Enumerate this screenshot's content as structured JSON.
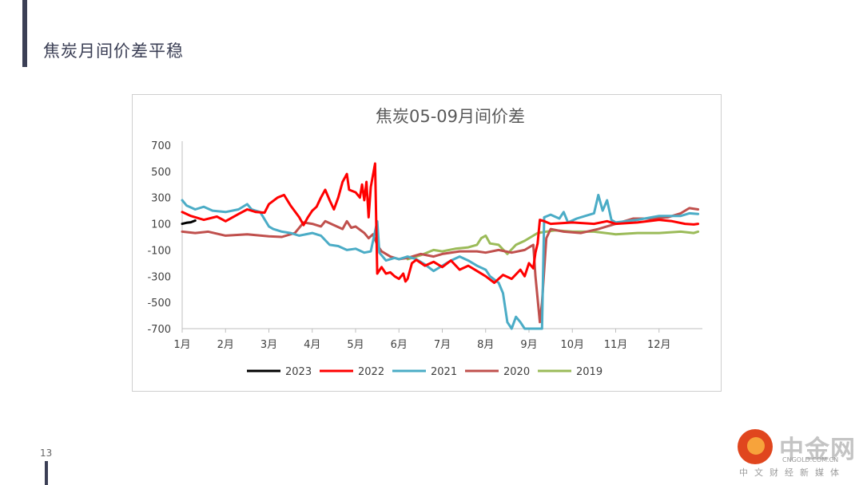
{
  "slide": {
    "title": "焦炭月间价差平稳",
    "page_number": "13"
  },
  "watermark": {
    "name": "中金网",
    "url": "CNGOLD.COM.CN",
    "tagline": "中文财经新媒体"
  },
  "chart_data": {
    "type": "line",
    "title": "焦炭05-09月间价差",
    "ylim": [
      -700,
      700
    ],
    "y_ticks": [
      700,
      500,
      300,
      100,
      -100,
      -300,
      -500,
      -700
    ],
    "x_range": [
      1,
      13
    ],
    "x_ticks": [
      {
        "label": "1月",
        "value": 1
      },
      {
        "label": "2月",
        "value": 2
      },
      {
        "label": "3月",
        "value": 3
      },
      {
        "label": "4月",
        "value": 4
      },
      {
        "label": "5月",
        "value": 5
      },
      {
        "label": "6月",
        "value": 6
      },
      {
        "label": "7月",
        "value": 7
      },
      {
        "label": "8月",
        "value": 8
      },
      {
        "label": "9月",
        "value": 9
      },
      {
        "label": "10月",
        "value": 10
      },
      {
        "label": "11月",
        "value": 11
      },
      {
        "label": "12月",
        "value": 12
      }
    ],
    "grid": false,
    "legend_position": "bottom",
    "series": [
      {
        "name": "2023",
        "color": "#000000",
        "points": [
          [
            1.0,
            100
          ],
          [
            1.1,
            108
          ],
          [
            1.2,
            112
          ],
          [
            1.3,
            125
          ]
        ]
      },
      {
        "name": "2022",
        "color": "#ff0000",
        "points": [
          [
            1.0,
            190
          ],
          [
            1.2,
            160
          ],
          [
            1.5,
            130
          ],
          [
            1.8,
            155
          ],
          [
            2.0,
            120
          ],
          [
            2.3,
            175
          ],
          [
            2.5,
            210
          ],
          [
            2.7,
            190
          ],
          [
            2.9,
            185
          ],
          [
            3.0,
            250
          ],
          [
            3.2,
            300
          ],
          [
            3.35,
            320
          ],
          [
            3.5,
            240
          ],
          [
            3.7,
            150
          ],
          [
            3.8,
            90
          ],
          [
            3.9,
            150
          ],
          [
            4.0,
            200
          ],
          [
            4.1,
            230
          ],
          [
            4.2,
            300
          ],
          [
            4.3,
            360
          ],
          [
            4.4,
            280
          ],
          [
            4.5,
            210
          ],
          [
            4.6,
            300
          ],
          [
            4.7,
            420
          ],
          [
            4.8,
            480
          ],
          [
            4.85,
            360
          ],
          [
            5.0,
            340
          ],
          [
            5.1,
            300
          ],
          [
            5.15,
            400
          ],
          [
            5.2,
            280
          ],
          [
            5.25,
            420
          ],
          [
            5.3,
            150
          ],
          [
            5.35,
            380
          ],
          [
            5.45,
            560
          ],
          [
            5.5,
            -280
          ],
          [
            5.6,
            -230
          ],
          [
            5.7,
            -280
          ],
          [
            5.8,
            -270
          ],
          [
            5.9,
            -300
          ],
          [
            6.0,
            -320
          ],
          [
            6.1,
            -280
          ],
          [
            6.15,
            -340
          ],
          [
            6.2,
            -320
          ],
          [
            6.3,
            -200
          ],
          [
            6.4,
            -175
          ],
          [
            6.6,
            -220
          ],
          [
            6.8,
            -190
          ],
          [
            7.0,
            -230
          ],
          [
            7.2,
            -180
          ],
          [
            7.4,
            -250
          ],
          [
            7.6,
            -220
          ],
          [
            7.8,
            -260
          ],
          [
            8.0,
            -300
          ],
          [
            8.2,
            -350
          ],
          [
            8.4,
            -290
          ],
          [
            8.6,
            -320
          ],
          [
            8.8,
            -250
          ],
          [
            8.9,
            -300
          ],
          [
            9.0,
            -200
          ],
          [
            9.1,
            -240
          ],
          [
            9.15,
            -120
          ],
          [
            9.2,
            -50
          ],
          [
            9.25,
            130
          ],
          [
            9.35,
            120
          ],
          [
            9.5,
            100
          ],
          [
            10.0,
            110
          ],
          [
            10.5,
            100
          ],
          [
            10.8,
            120
          ],
          [
            11.0,
            100
          ],
          [
            11.5,
            110
          ],
          [
            12.0,
            130
          ],
          [
            12.3,
            120
          ],
          [
            12.6,
            100
          ],
          [
            12.8,
            95
          ],
          [
            12.9,
            100
          ]
        ]
      },
      {
        "name": "2021",
        "color": "#4bacc6",
        "points": [
          [
            1.0,
            280
          ],
          [
            1.1,
            240
          ],
          [
            1.3,
            210
          ],
          [
            1.5,
            230
          ],
          [
            1.7,
            200
          ],
          [
            2.0,
            190
          ],
          [
            2.3,
            210
          ],
          [
            2.5,
            250
          ],
          [
            2.6,
            210
          ],
          [
            2.8,
            190
          ],
          [
            3.0,
            80
          ],
          [
            3.1,
            60
          ],
          [
            3.3,
            40
          ],
          [
            3.5,
            30
          ],
          [
            3.7,
            10
          ],
          [
            4.0,
            30
          ],
          [
            4.2,
            10
          ],
          [
            4.4,
            -60
          ],
          [
            4.6,
            -70
          ],
          [
            4.8,
            -100
          ],
          [
            5.0,
            -90
          ],
          [
            5.2,
            -120
          ],
          [
            5.35,
            -110
          ],
          [
            5.5,
            120
          ],
          [
            5.55,
            -120
          ],
          [
            5.7,
            -180
          ],
          [
            5.9,
            -160
          ],
          [
            6.0,
            -170
          ],
          [
            6.2,
            -150
          ],
          [
            6.4,
            -170
          ],
          [
            6.6,
            -210
          ],
          [
            6.8,
            -260
          ],
          [
            7.0,
            -220
          ],
          [
            7.2,
            -180
          ],
          [
            7.4,
            -150
          ],
          [
            7.6,
            -180
          ],
          [
            7.8,
            -220
          ],
          [
            8.0,
            -250
          ],
          [
            8.1,
            -300
          ],
          [
            8.3,
            -350
          ],
          [
            8.4,
            -430
          ],
          [
            8.5,
            -650
          ],
          [
            8.6,
            -720
          ],
          [
            8.7,
            -610
          ],
          [
            8.8,
            -650
          ],
          [
            8.9,
            -720
          ],
          [
            9.2,
            -720
          ],
          [
            9.3,
            -720
          ],
          [
            9.35,
            150
          ],
          [
            9.5,
            170
          ],
          [
            9.7,
            140
          ],
          [
            9.8,
            190
          ],
          [
            9.9,
            110
          ],
          [
            10.1,
            140
          ],
          [
            10.3,
            160
          ],
          [
            10.5,
            180
          ],
          [
            10.6,
            320
          ],
          [
            10.7,
            200
          ],
          [
            10.8,
            280
          ],
          [
            10.9,
            130
          ],
          [
            11.0,
            110
          ],
          [
            11.5,
            130
          ],
          [
            12.0,
            160
          ],
          [
            12.5,
            160
          ],
          [
            12.7,
            180
          ],
          [
            12.9,
            175
          ]
        ]
      },
      {
        "name": "2020",
        "color": "#c0504d",
        "points": [
          [
            1.0,
            40
          ],
          [
            1.3,
            30
          ],
          [
            1.6,
            40
          ],
          [
            2.0,
            10
          ],
          [
            2.5,
            20
          ],
          [
            3.0,
            5
          ],
          [
            3.3,
            0
          ],
          [
            3.6,
            30
          ],
          [
            3.8,
            110
          ],
          [
            4.0,
            100
          ],
          [
            4.2,
            80
          ],
          [
            4.3,
            120
          ],
          [
            4.5,
            90
          ],
          [
            4.7,
            60
          ],
          [
            4.8,
            120
          ],
          [
            4.9,
            70
          ],
          [
            5.0,
            80
          ],
          [
            5.2,
            30
          ],
          [
            5.3,
            -10
          ],
          [
            5.4,
            20
          ],
          [
            5.5,
            -60
          ],
          [
            5.6,
            -110
          ],
          [
            5.8,
            -150
          ],
          [
            6.0,
            -170
          ],
          [
            6.2,
            -160
          ],
          [
            6.5,
            -130
          ],
          [
            6.8,
            -150
          ],
          [
            7.0,
            -130
          ],
          [
            7.4,
            -110
          ],
          [
            7.8,
            -110
          ],
          [
            8.0,
            -120
          ],
          [
            8.3,
            -100
          ],
          [
            8.6,
            -120
          ],
          [
            8.9,
            -100
          ],
          [
            9.0,
            -80
          ],
          [
            9.1,
            -60
          ],
          [
            9.15,
            -300
          ],
          [
            9.25,
            -650
          ],
          [
            9.3,
            -500
          ],
          [
            9.4,
            -10
          ],
          [
            9.5,
            60
          ],
          [
            9.8,
            40
          ],
          [
            10.2,
            30
          ],
          [
            10.6,
            60
          ],
          [
            11.0,
            100
          ],
          [
            11.4,
            140
          ],
          [
            11.8,
            140
          ],
          [
            12.2,
            150
          ],
          [
            12.5,
            180
          ],
          [
            12.7,
            220
          ],
          [
            12.9,
            210
          ]
        ]
      },
      {
        "name": "2019",
        "color": "#9bbb59",
        "points": [
          [
            6.2,
            -170
          ],
          [
            6.5,
            -140
          ],
          [
            6.8,
            -100
          ],
          [
            7.0,
            -110
          ],
          [
            7.3,
            -90
          ],
          [
            7.6,
            -80
          ],
          [
            7.8,
            -60
          ],
          [
            7.9,
            -10
          ],
          [
            8.0,
            10
          ],
          [
            8.1,
            -50
          ],
          [
            8.3,
            -60
          ],
          [
            8.5,
            -130
          ],
          [
            8.7,
            -60
          ],
          [
            8.9,
            -30
          ],
          [
            9.0,
            -10
          ],
          [
            9.2,
            30
          ],
          [
            9.4,
            40
          ],
          [
            9.6,
            50
          ],
          [
            10.0,
            40
          ],
          [
            10.5,
            40
          ],
          [
            11.0,
            20
          ],
          [
            11.5,
            30
          ],
          [
            12.0,
            30
          ],
          [
            12.5,
            40
          ],
          [
            12.8,
            30
          ],
          [
            12.9,
            40
          ]
        ]
      }
    ]
  }
}
